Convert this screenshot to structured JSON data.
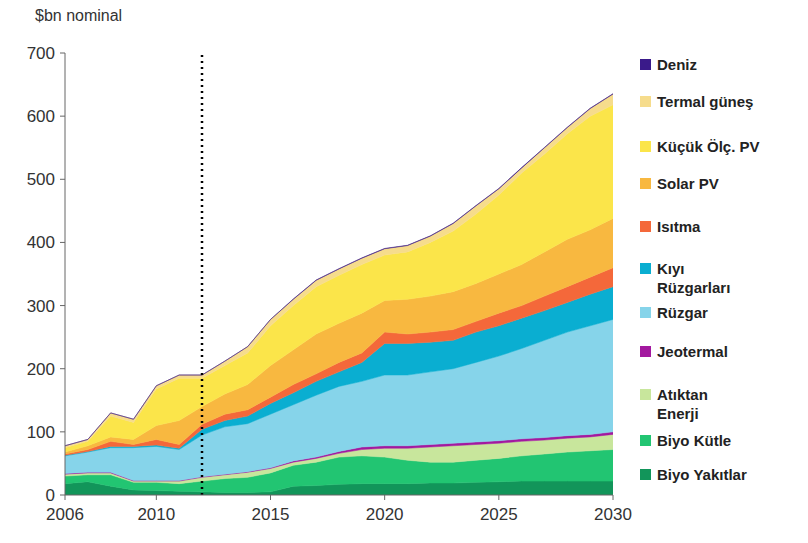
{
  "chart_data": {
    "type": "area",
    "stacked": true,
    "y_label": "$bn nominal",
    "legend": "right",
    "grid": false,
    "x": [
      2006,
      2007,
      2008,
      2009,
      2010,
      2011,
      2012,
      2013,
      2014,
      2015,
      2016,
      2017,
      2018,
      2019,
      2020,
      2021,
      2022,
      2023,
      2024,
      2025,
      2026,
      2027,
      2028,
      2029,
      2030
    ],
    "xlim": [
      2006,
      2030
    ],
    "xticks": [
      2006,
      2010,
      2015,
      2020,
      2025,
      2030
    ],
    "ylim": [
      0,
      700
    ],
    "yticks": [
      0,
      100,
      200,
      300,
      400,
      500,
      600,
      700
    ],
    "annotations": [
      {
        "x": 2012,
        "line_style": "dotted"
      }
    ],
    "series": [
      {
        "name": "Biyo Yakıtlar",
        "color": "#12955a",
        "values": [
          18,
          21,
          14,
          8,
          7,
          6,
          5,
          4,
          4,
          5,
          14,
          15,
          17,
          18,
          18,
          18,
          19,
          19,
          20,
          21,
          22,
          22,
          22,
          22,
          22
        ]
      },
      {
        "name": "Biyo Kütle",
        "color": "#22c572",
        "values": [
          12,
          11,
          18,
          12,
          13,
          12,
          17,
          22,
          24,
          30,
          33,
          37,
          43,
          44,
          42,
          37,
          33,
          33,
          35,
          37,
          40,
          43,
          46,
          48,
          50
        ]
      },
      {
        "name": "Atıktan Enerji",
        "color": "#c8e69c",
        "values": [
          3,
          3,
          3,
          2,
          2,
          4,
          6,
          6,
          8,
          7,
          5,
          6,
          6,
          10,
          14,
          19,
          24,
          26,
          25,
          24,
          23,
          22,
          22,
          22,
          24
        ]
      },
      {
        "name": "Jeotermal",
        "color": "#a3199f",
        "values": [
          1,
          1,
          1,
          1,
          1,
          1,
          1,
          1,
          1,
          1,
          2,
          2,
          3,
          4,
          4,
          4,
          4,
          4,
          4,
          4,
          4,
          4,
          4,
          4,
          4
        ]
      },
      {
        "name": "Rüzgar",
        "color": "#86d4ea",
        "values": [
          28,
          32,
          39,
          52,
          54,
          49,
          66,
          75,
          76,
          85,
          89,
          98,
          103,
          104,
          112,
          112,
          115,
          118,
          126,
          134,
          143,
          154,
          164,
          172,
          178
        ]
      },
      {
        "name": "Kıyı Rüzgarları",
        "color": "#0aaed1",
        "values": [
          1,
          1,
          2,
          2,
          2,
          2,
          9,
          10,
          12,
          17,
          19,
          22,
          23,
          30,
          50,
          50,
          47,
          45,
          48,
          48,
          48,
          47,
          47,
          50,
          52
        ]
      },
      {
        "name": "Isıtma",
        "color": "#f4683a",
        "values": [
          2,
          3,
          8,
          3,
          9,
          6,
          8,
          10,
          10,
          10,
          13,
          12,
          15,
          15,
          18,
          15,
          16,
          17,
          17,
          20,
          20,
          23,
          25,
          27,
          30
        ]
      },
      {
        "name": "Solar PV",
        "color": "#f8b840",
        "values": [
          3,
          6,
          7,
          8,
          22,
          38,
          28,
          32,
          40,
          50,
          55,
          63,
          62,
          63,
          50,
          55,
          57,
          60,
          60,
          62,
          65,
          70,
          75,
          75,
          78
        ]
      },
      {
        "name": "Küçük Ölç. PV",
        "color": "#fbe54a",
        "values": [
          7,
          7,
          33,
          27,
          58,
          67,
          45,
          45,
          50,
          63,
          70,
          75,
          76,
          77,
          72,
          75,
          85,
          96,
          110,
          125,
          145,
          155,
          167,
          180,
          180
        ]
      },
      {
        "name": "Termal güneş",
        "color": "#f6dc8c",
        "values": [
          3,
          3,
          5,
          5,
          5,
          5,
          5,
          7,
          10,
          10,
          10,
          10,
          10,
          10,
          10,
          10,
          10,
          12,
          13,
          10,
          8,
          10,
          10,
          12,
          17
        ]
      },
      {
        "name": "Deniz",
        "color": "#3a1a8a",
        "values": [
          0,
          0,
          0,
          0,
          0,
          0,
          0,
          0,
          0,
          0,
          0.5,
          0.5,
          0.5,
          0.5,
          0.5,
          0.5,
          0.5,
          0.5,
          0.5,
          0.5,
          0.5,
          0.5,
          0.5,
          0.5,
          0.5
        ]
      }
    ]
  }
}
